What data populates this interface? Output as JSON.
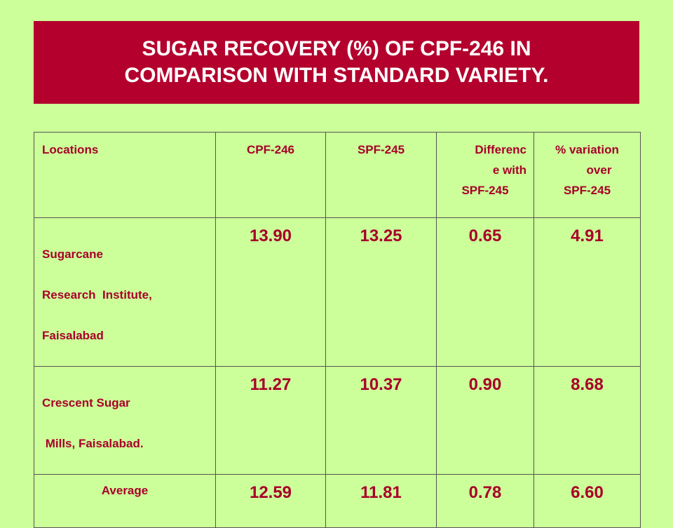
{
  "slide": {
    "title_line1": "SUGAR RECOVERY (%) OF CPF-246 IN",
    "title_line2": "COMPARISON WITH STANDARD VARIETY.",
    "background_color": "#ccff99",
    "title_bg_color": "#b3002d",
    "text_color": "#a8002a"
  },
  "table": {
    "headers": {
      "locations": "Locations",
      "cpf": "CPF-246",
      "spf": "SPF-245",
      "difference_line1": "Differenc",
      "difference_line2": "e with",
      "difference_line3": "SPF-245",
      "variation_line1": "% variation",
      "variation_line2": "over",
      "variation_line3": "SPF-245"
    },
    "rows": [
      {
        "location_line1": "Sugarcane",
        "location_line2": "Research  Institute,",
        "location_line3": "Faisalabad",
        "cpf": "13.90",
        "spf": "13.25",
        "difference": "0.65",
        "variation": "4.91"
      },
      {
        "location_line1": "Crescent Sugar",
        "location_line2": " Mills, Faisalabad.",
        "cpf": "11.27",
        "spf": "10.37",
        "difference": "0.90",
        "variation": "8.68"
      },
      {
        "location": "Average",
        "cpf": "12.59",
        "spf": "11.81",
        "difference": "0.78",
        "variation": "6.60"
      }
    ]
  }
}
